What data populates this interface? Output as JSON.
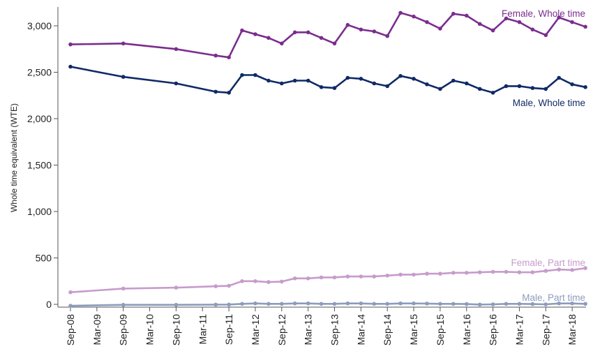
{
  "chart_data": {
    "type": "line",
    "title": "",
    "xlabel": "",
    "ylabel": "Whole time equivalent (WTE)",
    "ylim": [
      0,
      3200
    ],
    "y_ticks": [
      0,
      500,
      1000,
      1500,
      2000,
      2500,
      3000
    ],
    "y_tick_labels": [
      "0",
      "500",
      "1,000",
      "1,500",
      "2,000",
      "2,500",
      "3,000"
    ],
    "x_tick_labels": [
      "Sep-08",
      "Mar-09",
      "Sep-09",
      "Mar-10",
      "Sep-10",
      "Mar-11",
      "Sep-11",
      "Mar-12",
      "Sep-12",
      "Mar-13",
      "Sep-13",
      "Mar-14",
      "Sep-14",
      "Mar-15",
      "Sep-15",
      "Mar-16",
      "Sep-16",
      "Mar-17",
      "Sep-17",
      "Mar-18"
    ],
    "x_dates": [
      "Sep-08",
      "Sep-09",
      "Sep-10",
      "Jun-11",
      "Sep-11",
      "Dec-11",
      "Mar-12",
      "Jun-12",
      "Sep-12",
      "Dec-12",
      "Mar-13",
      "Jun-13",
      "Sep-13",
      "Dec-13",
      "Mar-14",
      "Jun-14",
      "Sep-14",
      "Dec-14",
      "Mar-15",
      "Jun-15",
      "Sep-15",
      "Dec-15",
      "Mar-16",
      "Jun-16",
      "Sep-16",
      "Dec-16",
      "Mar-17",
      "Jun-17",
      "Sep-17",
      "Dec-17",
      "Mar-18",
      "Jun-18"
    ],
    "grid": false,
    "legend": "inline labels at line ends",
    "series": [
      {
        "name": "Female, Whole time",
        "color": "#7B2D8E",
        "values": [
          2800,
          2810,
          2750,
          2680,
          2660,
          2950,
          2910,
          2870,
          2810,
          2930,
          2930,
          2870,
          2810,
          3010,
          2960,
          2940,
          2890,
          3140,
          3100,
          3040,
          2970,
          3130,
          3110,
          3020,
          2950,
          3080,
          3040,
          2960,
          2900,
          3090,
          3040,
          2990
        ]
      },
      {
        "name": "Male, Whole time",
        "color": "#0F2A66",
        "values": [
          2560,
          2450,
          2380,
          2290,
          2280,
          2470,
          2470,
          2410,
          2380,
          2410,
          2410,
          2340,
          2330,
          2440,
          2430,
          2380,
          2350,
          2460,
          2430,
          2370,
          2320,
          2410,
          2380,
          2320,
          2280,
          2350,
          2350,
          2330,
          2320,
          2440,
          2370,
          2340
        ]
      },
      {
        "name": "Female, Part time",
        "color": "#C79BCC",
        "values": [
          130,
          170,
          180,
          195,
          200,
          250,
          250,
          240,
          245,
          280,
          280,
          290,
          290,
          300,
          300,
          300,
          310,
          320,
          320,
          330,
          330,
          340,
          340,
          345,
          350,
          350,
          345,
          345,
          360,
          375,
          370,
          390
        ]
      },
      {
        "name": "Male, Part time",
        "color": "#8C9BBE",
        "values": [
          -15,
          -5,
          -5,
          -3,
          -2,
          5,
          10,
          5,
          5,
          10,
          10,
          5,
          5,
          10,
          10,
          5,
          5,
          10,
          10,
          8,
          5,
          5,
          3,
          -2,
          0,
          5,
          5,
          3,
          0,
          10,
          10,
          5
        ]
      }
    ]
  }
}
